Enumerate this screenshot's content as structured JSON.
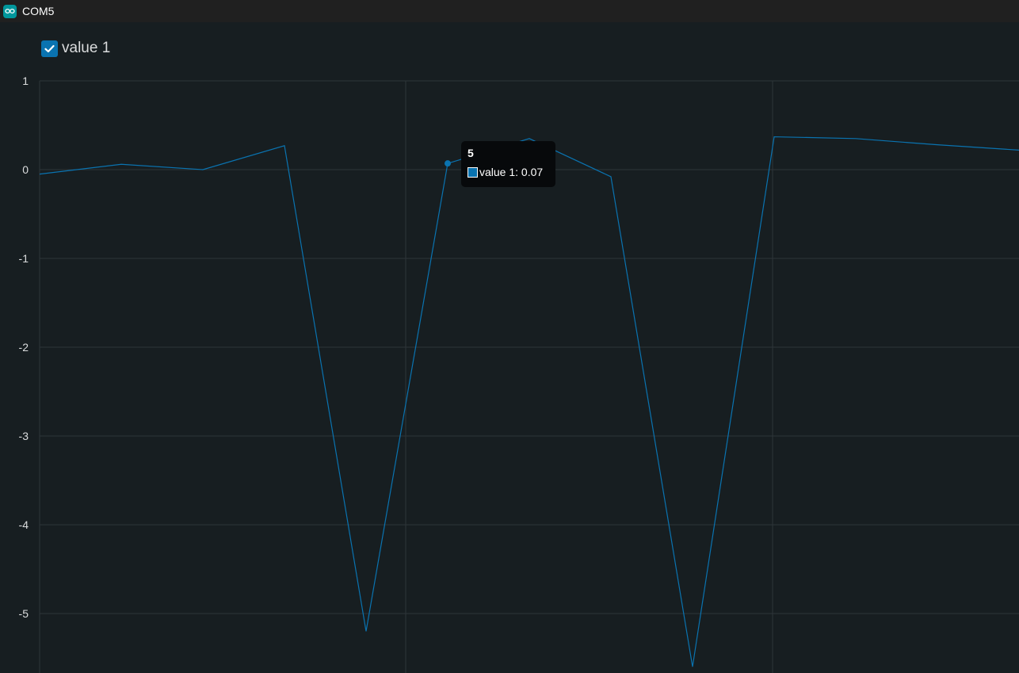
{
  "window": {
    "title": "COM5",
    "icon": "arduino-infinity-icon"
  },
  "legend": {
    "checked": true,
    "label": "value 1",
    "color": "#0a73b0"
  },
  "tooltip": {
    "title": "5",
    "text": "value 1: 0.07"
  },
  "colors": {
    "background": "#171e21",
    "grid": "#2d3539",
    "line": "#0a73b0",
    "tick_text": "#dadcdd"
  },
  "chart_data": {
    "type": "line",
    "title": "",
    "xlabel": "",
    "ylabel": "",
    "ylim": [
      -5.65,
      1
    ],
    "y_ticks": [
      "1",
      "0",
      "-1",
      "-2",
      "-3",
      "-4",
      "-5"
    ],
    "grid": true,
    "legend_placement": "top-left",
    "series": [
      {
        "name": "value 1",
        "x": [
          0,
          1,
          2,
          3,
          4,
          5,
          6,
          7,
          8,
          9,
          10,
          11,
          12
        ],
        "values": [
          -0.05,
          0.06,
          0.0,
          0.27,
          -5.2,
          0.07,
          0.35,
          -0.08,
          -5.6,
          0.37,
          0.35,
          0.28,
          0.22
        ]
      }
    ],
    "highlighted_point": {
      "series": "value 1",
      "x": 5,
      "y": 0.07
    }
  }
}
